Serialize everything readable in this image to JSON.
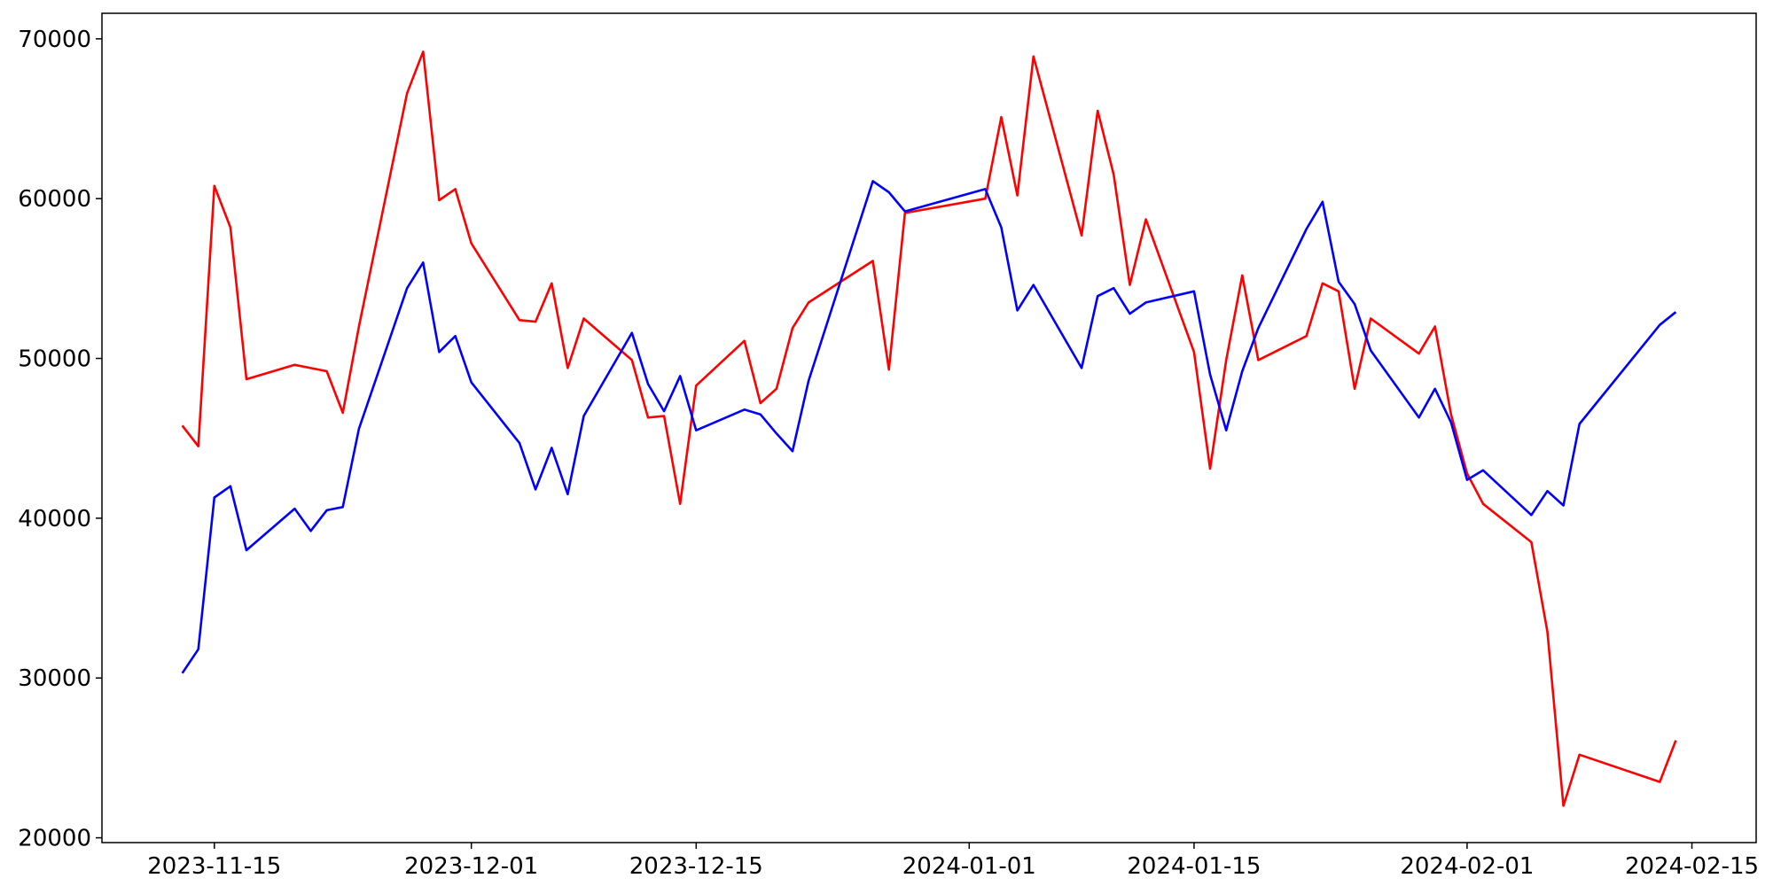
{
  "chart_data": {
    "type": "line",
    "x": [
      "2023-11-13",
      "2023-11-14",
      "2023-11-15",
      "2023-11-16",
      "2023-11-17",
      "2023-11-20",
      "2023-11-21",
      "2023-11-22",
      "2023-11-23",
      "2023-11-24",
      "2023-11-27",
      "2023-11-28",
      "2023-11-29",
      "2023-11-30",
      "2023-12-01",
      "2023-12-04",
      "2023-12-05",
      "2023-12-06",
      "2023-12-07",
      "2023-12-08",
      "2023-12-11",
      "2023-12-12",
      "2023-12-13",
      "2023-12-14",
      "2023-12-15",
      "2023-12-18",
      "2023-12-19",
      "2023-12-20",
      "2023-12-21",
      "2023-12-22",
      "2023-12-26",
      "2023-12-27",
      "2023-12-28",
      "2024-01-02",
      "2024-01-03",
      "2024-01-04",
      "2024-01-05",
      "2024-01-08",
      "2024-01-09",
      "2024-01-10",
      "2024-01-11",
      "2024-01-12",
      "2024-01-15",
      "2024-01-16",
      "2024-01-17",
      "2024-01-18",
      "2024-01-19",
      "2024-01-22",
      "2024-01-23",
      "2024-01-24",
      "2024-01-25",
      "2024-01-26",
      "2024-01-29",
      "2024-01-30",
      "2024-01-31",
      "2024-02-01",
      "2024-02-02",
      "2024-02-05",
      "2024-02-06",
      "2024-02-07",
      "2024-02-08",
      "2024-02-13",
      "2024-02-14"
    ],
    "series": [
      {
        "color": "#ff0000",
        "values": [
          45800,
          44500,
          60800,
          58200,
          48700,
          49600,
          49400,
          49200,
          46600,
          52000,
          66600,
          69200,
          59900,
          60600,
          57200,
          52400,
          52300,
          54700,
          49400,
          52500,
          49900,
          46300,
          46400,
          40900,
          48300,
          51100,
          47200,
          48100,
          51900,
          53500,
          56100,
          49300,
          59100,
          60000,
          65100,
          60200,
          68900,
          57700,
          65500,
          61500,
          54600,
          58700,
          50400,
          43100,
          49900,
          55200,
          49900,
          51400,
          54700,
          54200,
          48100,
          52500,
          50300,
          52000,
          46500,
          42800,
          40900,
          38500,
          32900,
          22000,
          25200,
          23500,
          26100
        ]
      },
      {
        "color": "#0000ff",
        "values": [
          30300,
          31800,
          41300,
          42000,
          38000,
          40600,
          39200,
          40500,
          40700,
          45600,
          54400,
          56000,
          50400,
          51400,
          48500,
          44700,
          41800,
          44400,
          41500,
          46400,
          51600,
          48400,
          46700,
          48900,
          45500,
          46800,
          46500,
          45300,
          44200,
          48600,
          61100,
          60400,
          59200,
          60600,
          58200,
          53000,
          54600,
          49400,
          53900,
          54400,
          52800,
          53500,
          54200,
          49000,
          45500,
          49200,
          51900,
          58100,
          59800,
          54800,
          53400,
          50500,
          46300,
          48100,
          46000,
          42400,
          43000,
          40200,
          41700,
          40800,
          45900,
          52100,
          52900
        ]
      }
    ],
    "xlim": [
      "2023-11-08",
      "2024-02-19"
    ],
    "xticks": [
      "2023-11-15",
      "2023-12-01",
      "2023-12-15",
      "2024-01-01",
      "2024-01-15",
      "2024-02-01",
      "2024-02-15"
    ],
    "ylim": [
      19700,
      71600
    ],
    "yticks": [
      20000,
      30000,
      40000,
      50000,
      60000,
      70000
    ]
  }
}
